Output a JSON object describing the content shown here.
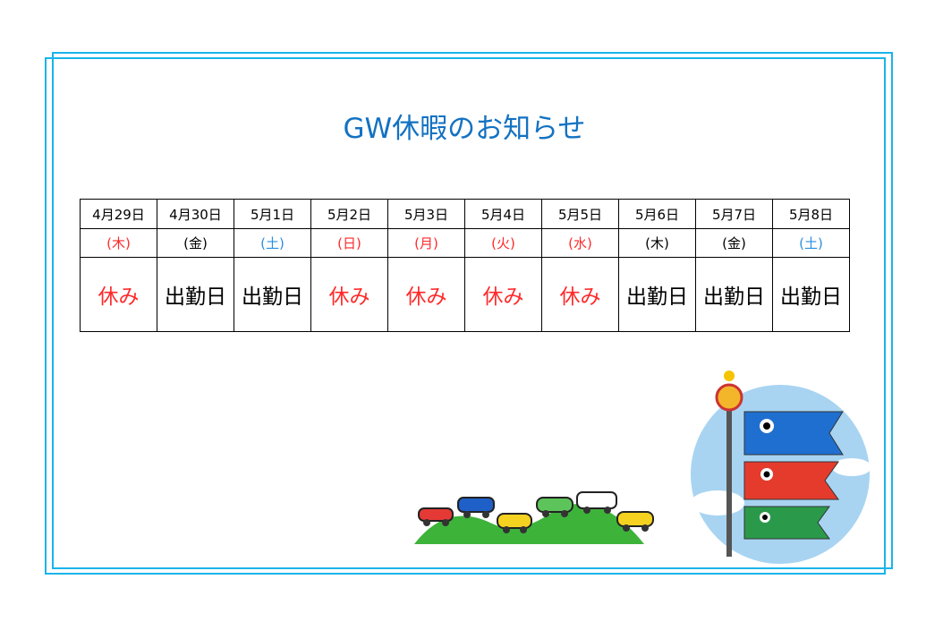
{
  "title": "GW休暇のお知らせ",
  "colors": {
    "frame": "#1ab4ea",
    "title": "#1372c2",
    "holiday": "#ff2a2a",
    "saturday": "#2a8fe0",
    "work": "#000000"
  },
  "days": [
    {
      "date": "4月29日",
      "weekday": "(木)",
      "status": "休み",
      "type": "holiday"
    },
    {
      "date": "4月30日",
      "weekday": "(金)",
      "status": "出勤日",
      "type": "work"
    },
    {
      "date": "5月1日",
      "weekday": "(土)",
      "status": "出勤日",
      "type": "saturday"
    },
    {
      "date": "5月2日",
      "weekday": "(日)",
      "status": "休み",
      "type": "holiday"
    },
    {
      "date": "5月3日",
      "weekday": "(月)",
      "status": "休み",
      "type": "holiday"
    },
    {
      "date": "5月4日",
      "weekday": "(火)",
      "status": "休み",
      "type": "holiday"
    },
    {
      "date": "5月5日",
      "weekday": "(水)",
      "status": "休み",
      "type": "holiday"
    },
    {
      "date": "5月6日",
      "weekday": "(木)",
      "status": "出勤日",
      "type": "work"
    },
    {
      "date": "5月7日",
      "weekday": "(金)",
      "status": "出勤日",
      "type": "work"
    },
    {
      "date": "5月8日",
      "weekday": "(土)",
      "status": "出勤日",
      "type": "saturday"
    }
  ]
}
